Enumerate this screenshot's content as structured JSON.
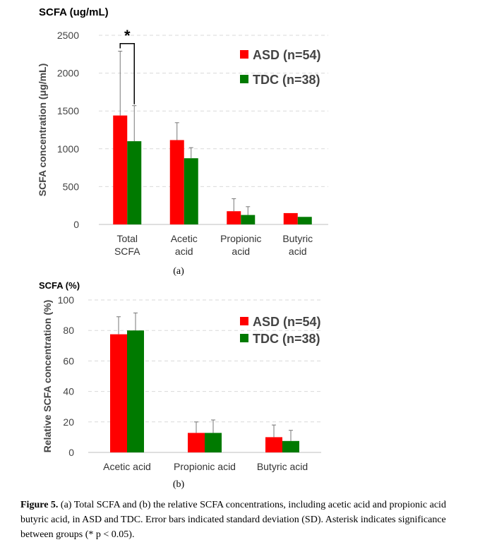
{
  "chart_data": [
    {
      "type": "bar",
      "title": "SCFA (ug/mL)",
      "ylabel": "SCFA concentration (μg/mL)",
      "xlabel": "",
      "ylim": [
        0,
        2500
      ],
      "yticks": [
        "0",
        "500",
        "1000",
        "1500",
        "2000",
        "2500"
      ],
      "categories": [
        [
          "Total",
          "SCFA"
        ],
        [
          "Acetic",
          "acid"
        ],
        [
          "Propionic",
          "acid"
        ],
        [
          "Butyric",
          "acid"
        ]
      ],
      "series": [
        {
          "name": "ASD (n=54)",
          "color": "#ff0000",
          "values": [
            1440,
            1115,
            175,
            150
          ],
          "errors": [
            850,
            230,
            165,
            0
          ]
        },
        {
          "name": "TDC (n=38)",
          "color": "#007a00",
          "values": [
            1100,
            875,
            125,
            100
          ],
          "errors": [
            470,
            140,
            110,
            0
          ]
        }
      ],
      "grid": true,
      "legend_position": "top-right",
      "annotation": "*",
      "sublabel": "(a)"
    },
    {
      "type": "bar",
      "title": "SCFA (%)",
      "ylabel": "Relative SCFA concentration (%)",
      "xlabel": "",
      "ylim": [
        0,
        100
      ],
      "yticks": [
        "0",
        "20",
        "40",
        "60",
        "80",
        "100"
      ],
      "categories": [
        [
          "Acetic acid"
        ],
        [
          "Propionic acid"
        ],
        [
          "Butyric acid"
        ]
      ],
      "series": [
        {
          "name": "ASD (n=54)",
          "color": "#ff0000",
          "values": [
            77.5,
            12.8,
            10
          ],
          "errors": [
            11.5,
            7.2,
            8
          ]
        },
        {
          "name": "TDC (n=38)",
          "color": "#007a00",
          "values": [
            80,
            12.8,
            7.5
          ],
          "errors": [
            11.5,
            8.5,
            7
          ]
        }
      ],
      "grid": true,
      "legend_position": "top-right",
      "sublabel": "(b)"
    }
  ],
  "caption": {
    "label": "Figure 5.",
    "text": "(a) Total SCFA and (b) the relative SCFA concentrations, including acetic acid and propionic acid butyric acid, in ASD and TDC. Error bars indicated standard deviation (SD). Asterisk indicates significance between groups (* p < 0.05)."
  }
}
